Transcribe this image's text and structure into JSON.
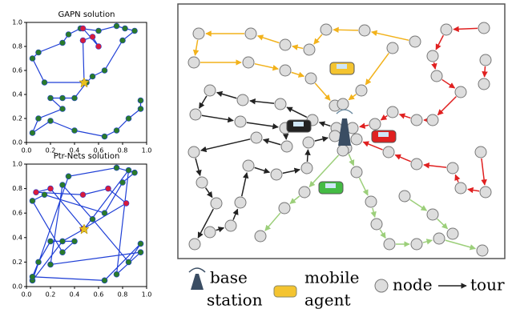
{
  "chart_data": [
    {
      "type": "line",
      "title": "GAPN solution",
      "xlim": [
        0,
        1
      ],
      "ylim": [
        0,
        1
      ],
      "xticks": [
        {
          "value": 0,
          "label": "0.0"
        },
        {
          "value": 0.2,
          "label": "0.2"
        },
        {
          "value": 0.4,
          "label": "0.4"
        },
        {
          "value": 0.6,
          "label": "0.6"
        },
        {
          "value": 0.8,
          "label": "0.8"
        },
        {
          "value": 1,
          "label": "1.0"
        }
      ],
      "yticks": [
        {
          "value": 0,
          "label": "0.0"
        },
        {
          "value": 0.2,
          "label": "0.2"
        },
        {
          "value": 0.4,
          "label": "0.4"
        },
        {
          "value": 0.6,
          "label": "0.6"
        },
        {
          "value": 0.8,
          "label": "0.8"
        },
        {
          "value": 1,
          "label": "1.0"
        }
      ],
      "series": [
        {
          "color": "#1f3fd6",
          "marker": "#2a7a2a",
          "x": [
            0.48,
            0.15,
            0.05,
            0.1,
            0.3,
            0.35,
            0.45,
            0.6,
            0.75,
            0.82,
            0.9,
            0.8,
            0.65,
            0.55,
            0.5,
            0.4,
            0.3,
            0.2,
            0.3,
            0.1,
            0.05,
            0.2,
            0.4,
            0.65,
            0.75,
            0.85,
            0.95,
            0.95
          ],
          "y": [
            0.5,
            0.5,
            0.7,
            0.75,
            0.83,
            0.9,
            0.95,
            0.93,
            0.97,
            0.95,
            0.93,
            0.85,
            0.6,
            0.55,
            0.5,
            0.37,
            0.37,
            0.37,
            0.28,
            0.2,
            0.08,
            0.18,
            0.1,
            0.05,
            0.1,
            0.2,
            0.28,
            0.35
          ]
        },
        {
          "color": "#1f3fd6",
          "marker": "#d81b3c",
          "x": [
            0.48,
            0.47,
            0.55,
            0.6,
            0.47
          ],
          "y": [
            0.5,
            0.85,
            0.88,
            0.8,
            0.95
          ]
        }
      ]
    },
    {
      "type": "line",
      "title": "Ptr-Nets solution",
      "xlim": [
        0,
        1
      ],
      "ylim": [
        0,
        1
      ],
      "xticks": [
        {
          "value": 0,
          "label": "0.0"
        },
        {
          "value": 0.2,
          "label": "0.2"
        },
        {
          "value": 0.4,
          "label": "0.4"
        },
        {
          "value": 0.6,
          "label": "0.6"
        },
        {
          "value": 0.8,
          "label": "0.8"
        },
        {
          "value": 1,
          "label": "1.0"
        }
      ],
      "yticks": [
        {
          "value": 0,
          "label": "0.0"
        },
        {
          "value": 0.2,
          "label": "0.2"
        },
        {
          "value": 0.4,
          "label": "0.4"
        },
        {
          "value": 0.6,
          "label": "0.6"
        },
        {
          "value": 0.8,
          "label": "0.8"
        },
        {
          "value": 1,
          "label": "1.0"
        }
      ],
      "series": [
        {
          "color": "#1f3fd6",
          "marker": "#2a7a2a",
          "x": [
            0.48,
            0.3,
            0.05,
            0.35,
            0.75,
            0.9,
            0.8,
            0.65,
            0.15,
            0.05,
            0.3,
            0.4,
            0.2,
            0.1,
            0.05,
            0.65,
            0.95,
            0.85,
            0.55,
            0.3,
            0.2,
            0.95,
            0.75,
            0.85,
            0.48
          ],
          "y": [
            0.47,
            0.37,
            0.05,
            0.9,
            0.97,
            0.93,
            0.85,
            0.6,
            0.75,
            0.7,
            0.28,
            0.37,
            0.37,
            0.2,
            0.08,
            0.05,
            0.35,
            0.2,
            0.55,
            0.83,
            0.18,
            0.28,
            0.1,
            0.95,
            0.47
          ]
        },
        {
          "color": "#1f3fd6",
          "marker": "#d81b3c",
          "x": [
            0.48,
            0.2,
            0.08,
            0.47,
            0.68,
            0.83,
            0.47
          ],
          "y": [
            0.47,
            0.8,
            0.77,
            0.75,
            0.8,
            0.68,
            0.47
          ]
        }
      ]
    }
  ],
  "diagram": {
    "legend": {
      "base_station": [
        "base",
        "station"
      ],
      "mobile_agent": [
        "mobile",
        "agent"
      ],
      "node": "node",
      "tour": "tour"
    }
  }
}
